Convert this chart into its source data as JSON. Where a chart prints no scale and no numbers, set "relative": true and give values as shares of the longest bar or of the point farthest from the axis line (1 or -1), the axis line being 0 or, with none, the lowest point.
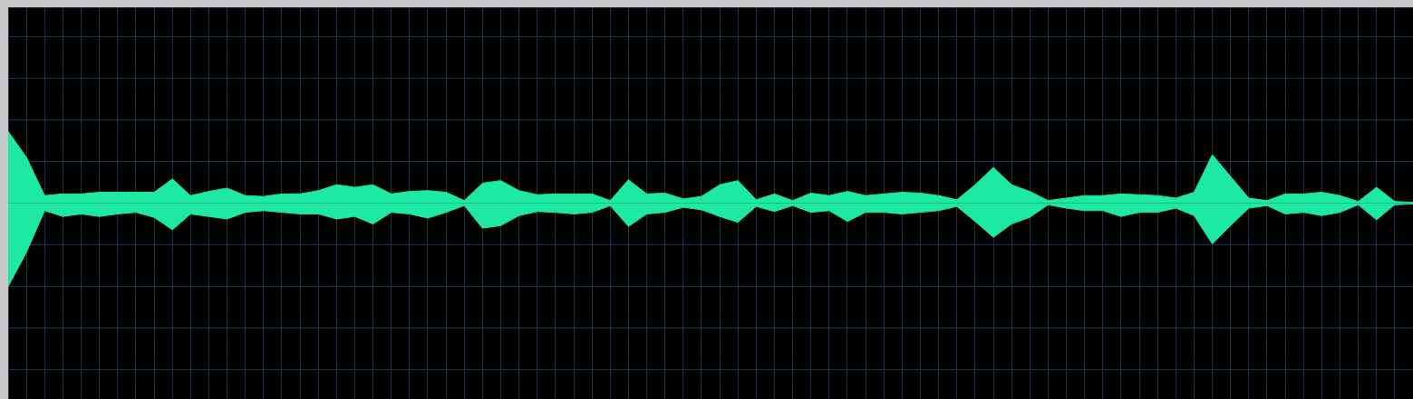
{
  "chart_data": {
    "type": "area",
    "relative": true,
    "grid": true,
    "categories": [
      null,
      null,
      null,
      null,
      null,
      null,
      null,
      null,
      null,
      null,
      null,
      null,
      null,
      null,
      null,
      null,
      null,
      null,
      null,
      null,
      null,
      null,
      null,
      null,
      null,
      null,
      null,
      null,
      null,
      null,
      null,
      null,
      null,
      null,
      null,
      null,
      null,
      null,
      null,
      null,
      null,
      null,
      null,
      null,
      null,
      null,
      null,
      null,
      null,
      null,
      null,
      null,
      null,
      null,
      null,
      null,
      null,
      null,
      null,
      null,
      null,
      null,
      null,
      null,
      null,
      null,
      null,
      null,
      null,
      null,
      null,
      null,
      null,
      null,
      null,
      null,
      null,
      null
    ],
    "series": [
      {
        "color": "#1de9a5",
        "values": [
          0.86,
          0.55,
          0.09,
          0.11,
          0.11,
          0.13,
          0.13,
          0.13,
          0.13,
          0.29,
          0.09,
          0.14,
          0.18,
          0.09,
          0.08,
          0.11,
          0.11,
          0.15,
          0.22,
          0.19,
          0.22,
          0.11,
          0.14,
          0.15,
          0.13,
          0.03,
          0.24,
          0.27,
          0.15,
          0.1,
          0.11,
          0.11,
          0.11,
          0.03,
          0.28,
          0.11,
          0.12,
          0.05,
          0.08,
          0.22,
          0.27,
          0.04,
          0.11,
          0.03,
          0.12,
          0.09,
          0.14,
          0.09,
          0.11,
          0.13,
          0.12,
          0.09,
          0.04,
          0.22,
          0.43,
          0.22,
          0.14,
          0.03,
          0.06,
          0.09,
          0.09,
          0.11,
          0.1,
          0.09,
          0.06,
          0.13,
          0.58,
          0.32,
          0.06,
          0.03,
          0.11,
          0.11,
          0.13,
          0.09,
          0.02,
          0.19,
          0.02,
          0.01
        ]
      },
      {
        "color": "#1de9a5",
        "values": [
          -1,
          -0.59,
          -0.09,
          -0.16,
          -0.13,
          -0.16,
          -0.13,
          -0.11,
          -0.17,
          -0.32,
          -0.13,
          -0.16,
          -0.19,
          -0.11,
          -0.09,
          -0.11,
          -0.13,
          -0.13,
          -0.19,
          -0.16,
          -0.25,
          -0.11,
          -0.13,
          -0.18,
          -0.11,
          -0.03,
          -0.3,
          -0.27,
          -0.15,
          -0.1,
          -0.11,
          -0.13,
          -0.11,
          -0.03,
          -0.28,
          -0.13,
          -0.11,
          -0.05,
          -0.08,
          -0.16,
          -0.23,
          -0.04,
          -0.1,
          -0.03,
          -0.11,
          -0.09,
          -0.22,
          -0.11,
          -0.11,
          -0.13,
          -0.11,
          -0.09,
          -0.04,
          -0.22,
          -0.41,
          -0.25,
          -0.17,
          -0.02,
          -0.06,
          -0.09,
          -0.09,
          -0.16,
          -0.11,
          -0.11,
          -0.06,
          -0.15,
          -0.49,
          -0.27,
          -0.06,
          -0.03,
          -0.13,
          -0.11,
          -0.15,
          -0.11,
          -0.02,
          -0.2,
          -0.02,
          -0.01
        ]
      }
    ]
  }
}
